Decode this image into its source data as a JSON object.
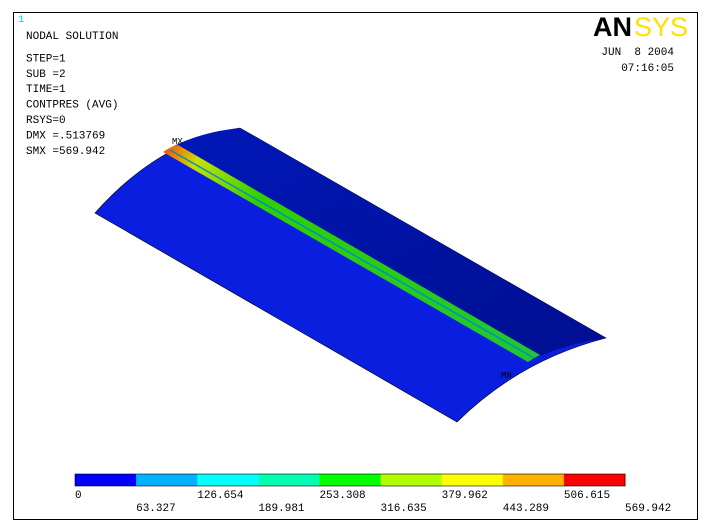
{
  "window_number": "1",
  "info": [
    "NODAL SOLUTION",
    "STEP=1",
    "SUB =2",
    "TIME=1",
    "CONTPRES (AVG)",
    "RSYS=0",
    "DMX =.513769",
    "SMX =569.942"
  ],
  "logo": [
    "AN",
    "SYS"
  ],
  "date": "JUN  8 2004",
  "time": "07:16:05",
  "markers": {
    "max": "MX",
    "min": "MN"
  },
  "legend": {
    "levels": [
      0,
      63.327,
      126.654,
      189.981,
      253.308,
      316.635,
      379.962,
      443.289,
      506.615,
      569.942
    ],
    "colors": [
      "#0000ff",
      "#00b2ff",
      "#00ffff",
      "#00ffb2",
      "#00ff00",
      "#b2ff00",
      "#ffff00",
      "#ffb200",
      "#ff0000"
    ]
  }
}
